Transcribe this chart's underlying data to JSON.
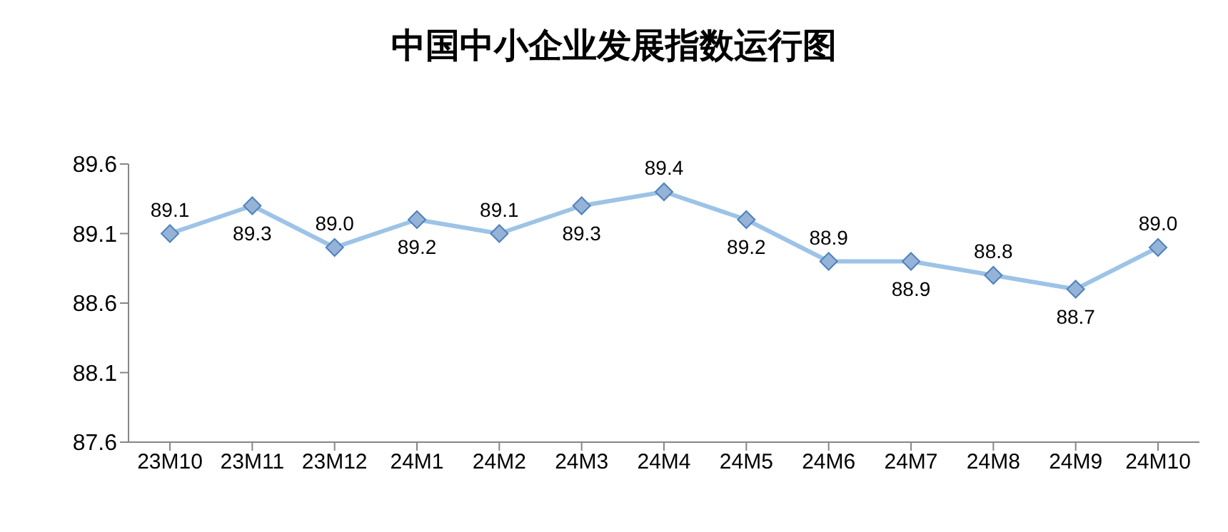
{
  "chart_data": {
    "type": "line",
    "title": "中国中小企业发展指数运行图",
    "categories": [
      "23M10",
      "23M11",
      "23M12",
      "24M1",
      "24M2",
      "24M3",
      "24M4",
      "24M5",
      "24M6",
      "24M7",
      "24M8",
      "24M9",
      "24M10"
    ],
    "series": [
      {
        "color": "#9dc3e6",
        "values": [
          89.1,
          89.3,
          89.0,
          89.2,
          89.1,
          89.3,
          89.4,
          89.2,
          88.9,
          88.9,
          88.8,
          88.7,
          89.0
        ],
        "value_labels": [
          "89.1",
          "89.3",
          "89.0",
          "89.2",
          "89.1",
          "89.3",
          "89.4",
          "89.2",
          "88.9",
          "88.9",
          "88.8",
          "88.7",
          "89.0"
        ]
      }
    ],
    "ylim": [
      87.6,
      89.6
    ],
    "yticks": [
      87.6,
      88.1,
      88.6,
      89.1,
      89.6
    ],
    "grid": false,
    "legend": false,
    "marker": "diamond",
    "line_style": "solid"
  }
}
